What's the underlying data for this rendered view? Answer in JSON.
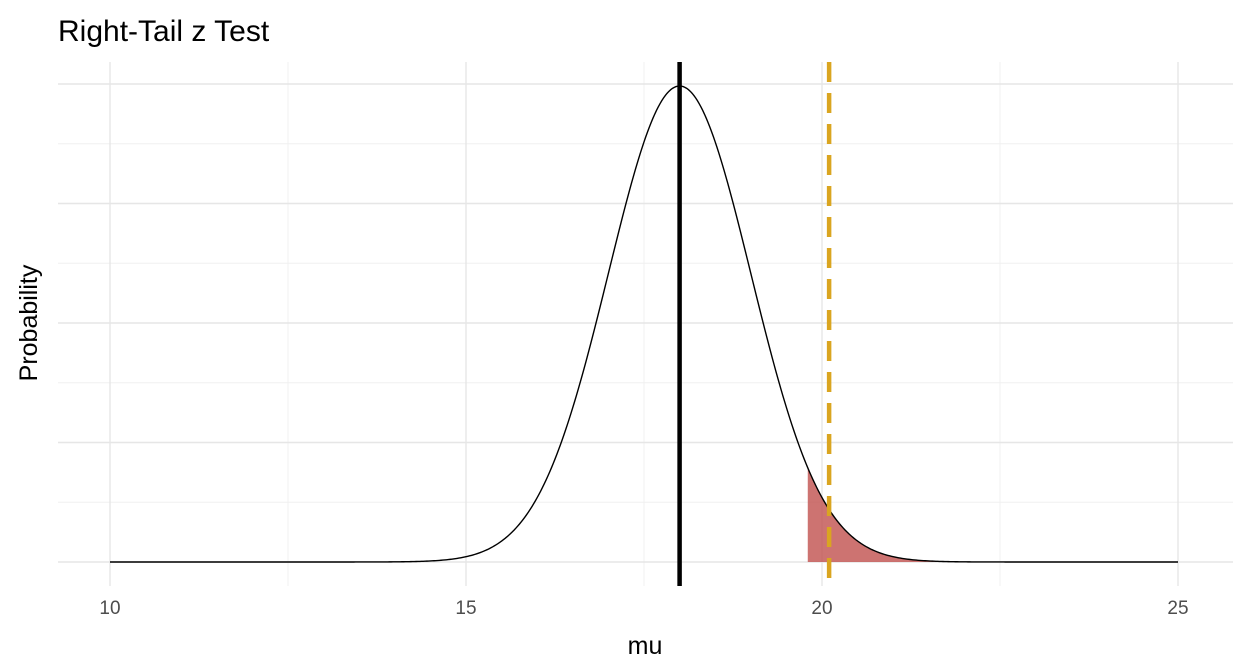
{
  "chart_data": {
    "type": "area",
    "title": "Right-Tail z Test",
    "xlabel": "mu",
    "ylabel": "Probability",
    "xlim": [
      10,
      25
    ],
    "ylim": [
      0,
      0.4
    ],
    "x_ticks": [
      10,
      15,
      20,
      25
    ],
    "x_tick_labels": [
      "10",
      "15",
      "20",
      "25"
    ],
    "y_tick_labels": [],
    "grid": true,
    "legend": "none",
    "distribution": {
      "name": "normal",
      "mean": 18,
      "sd": 1,
      "x_range": [
        10,
        25
      ]
    },
    "shaded_region": {
      "from": 19.8,
      "to": 25,
      "color": "#C0504D",
      "opacity": 0.8
    },
    "vlines": [
      {
        "x": 18,
        "color": "#000000",
        "style": "solid"
      },
      {
        "x": 20.1,
        "color": "#DAA520",
        "style": "dashed"
      }
    ]
  }
}
